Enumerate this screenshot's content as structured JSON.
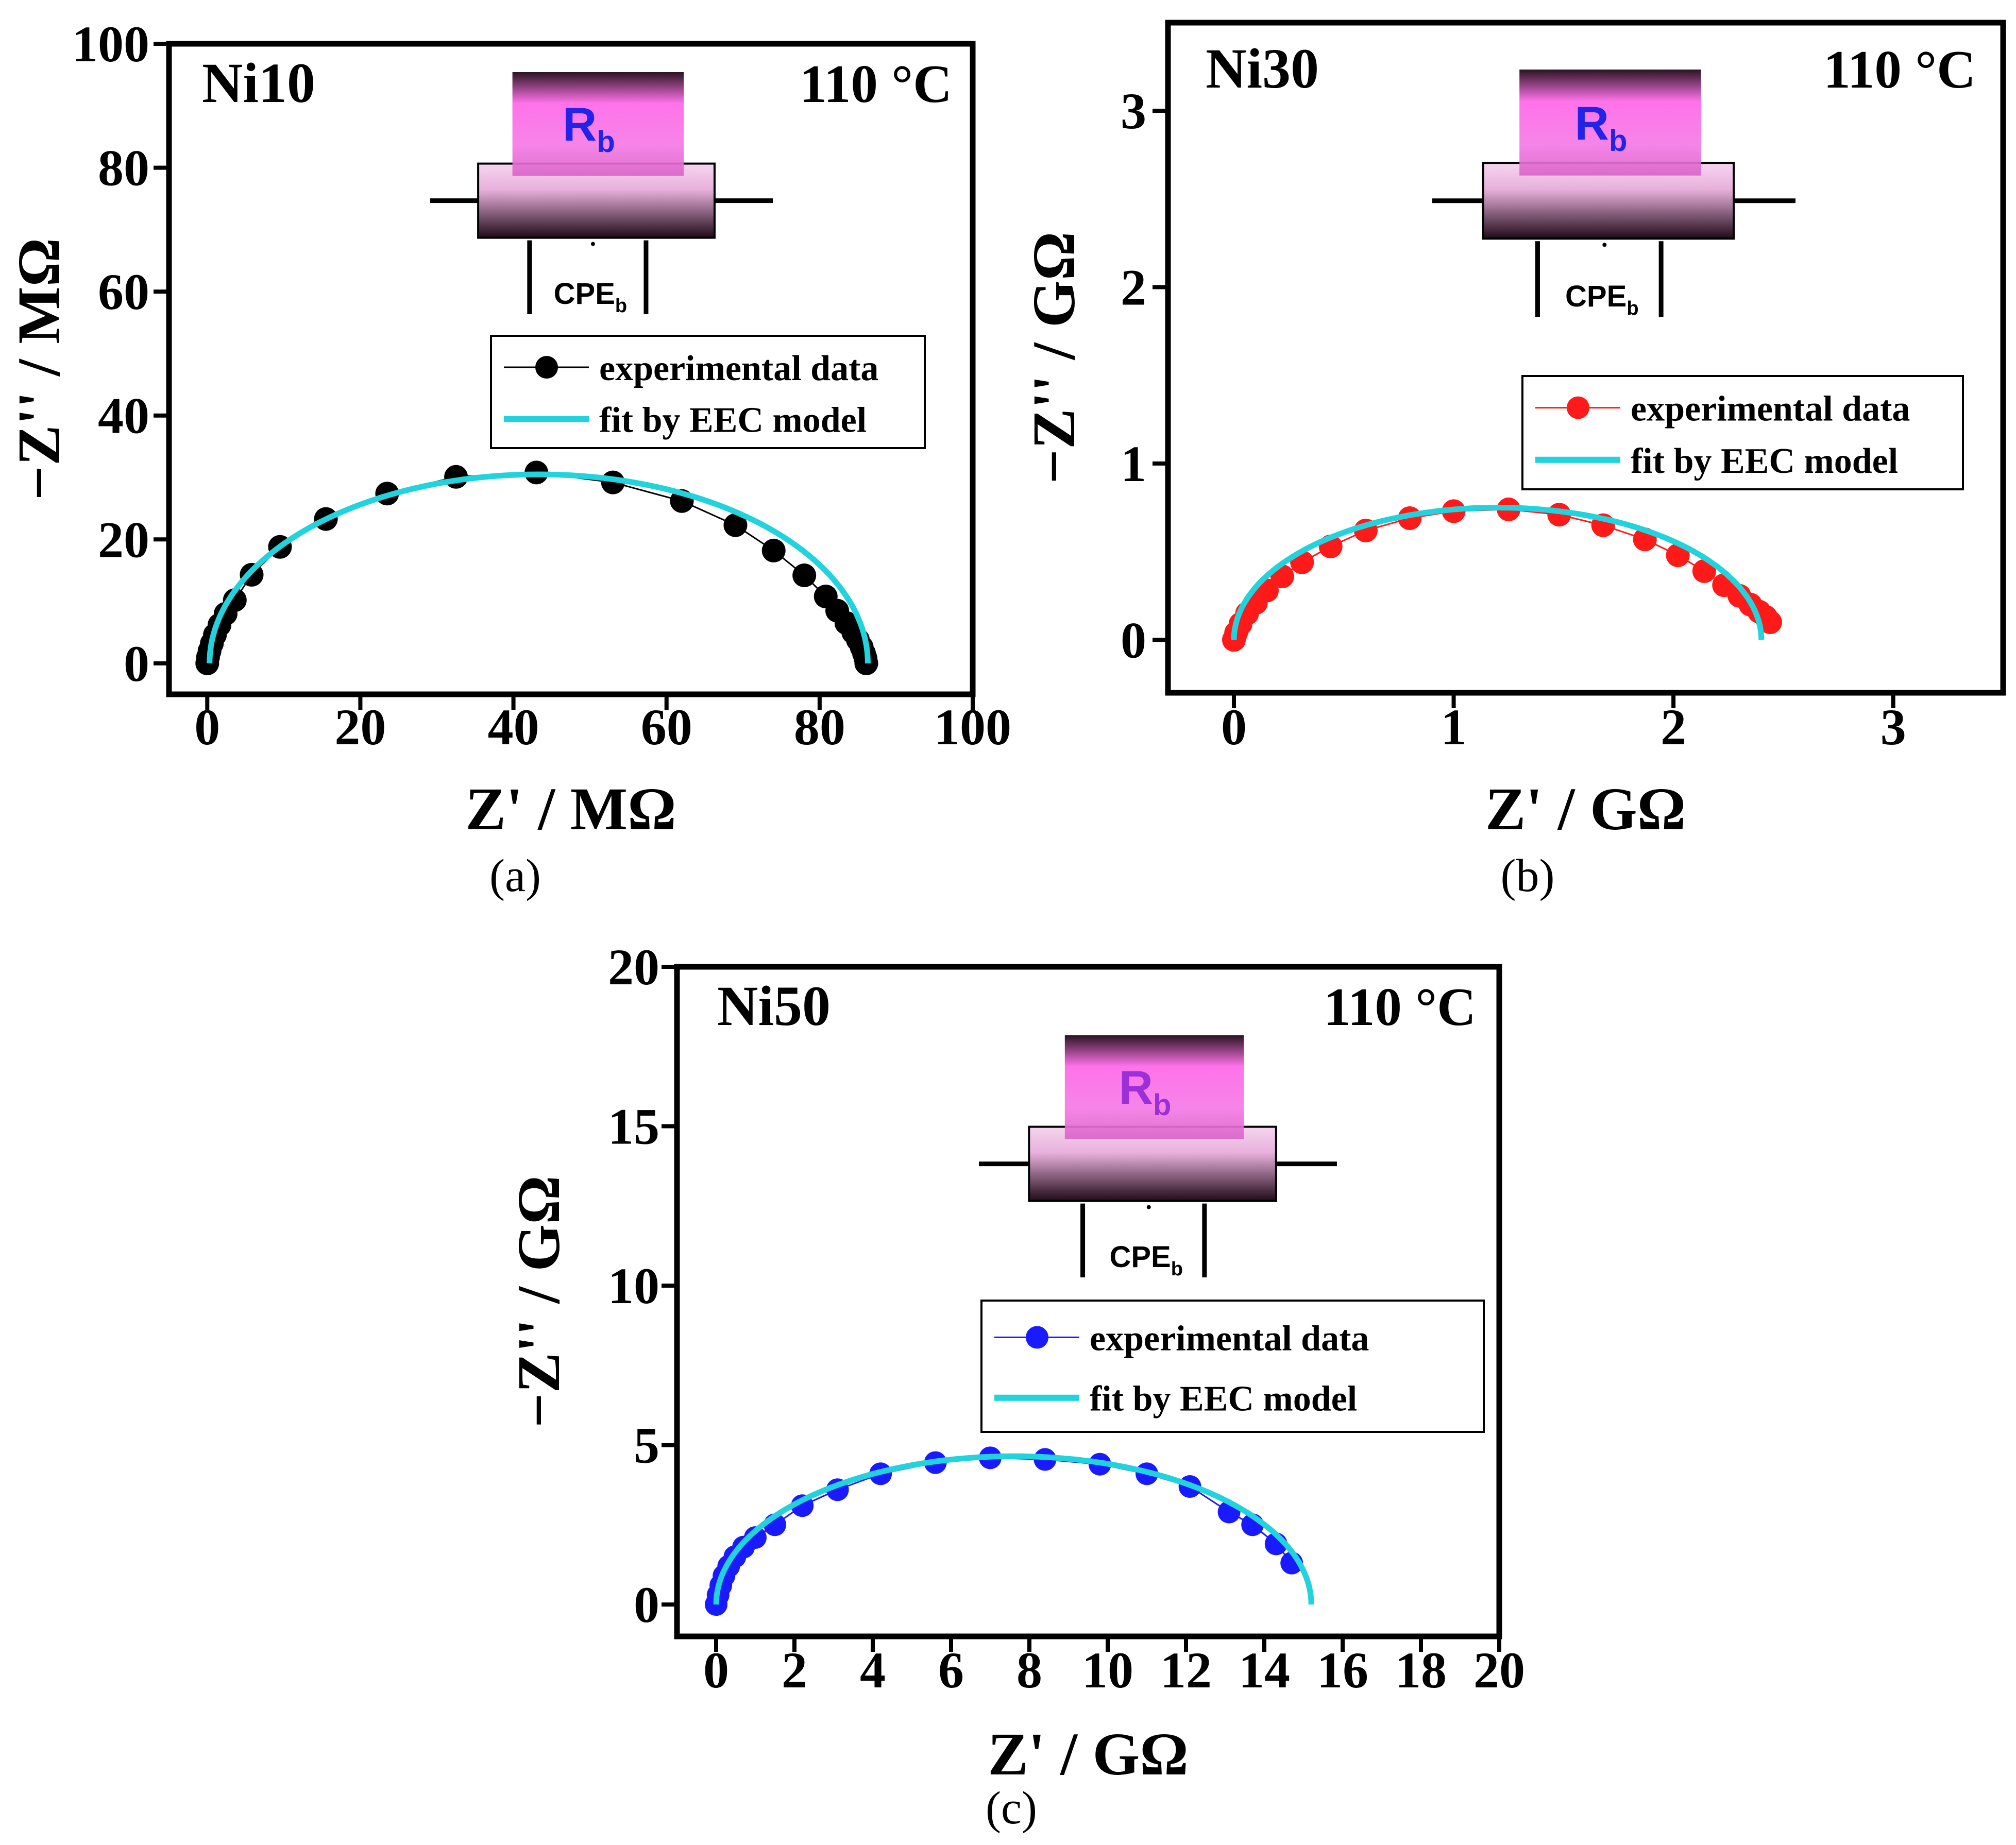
{
  "chart_data": [
    {
      "type": "scatter",
      "panel_label": "(a)",
      "sample": "Ni10",
      "temperature": "110 °C",
      "xlabel": "Z' / MΩ",
      "ylabel": "−Z'' / MΩ",
      "xlim": [
        -5,
        100
      ],
      "ylim": [
        -5,
        100
      ],
      "xticks": [
        0,
        20,
        40,
        60,
        80,
        100
      ],
      "yticks": [
        0,
        20,
        40,
        60,
        80,
        100
      ],
      "marker_color": "#000000",
      "fit_color": "#22d3dd",
      "circuit": {
        "resistor": "R",
        "resistor_sub": "b",
        "cpe": "CPE",
        "cpe_sub": "b"
      },
      "legend": [
        "experimental data",
        "fit by EEC model"
      ],
      "series": [
        {
          "name": "experimental data",
          "x": [
            0.0,
            0.1,
            0.3,
            0.6,
            1.0,
            1.6,
            2.4,
            3.6,
            5.8,
            9.5,
            15.5,
            23.5,
            32.5,
            43.0,
            53.0,
            62.0,
            69.0,
            74.0,
            78.0,
            80.8,
            82.3,
            83.5,
            84.4,
            85.0,
            85.5,
            85.8,
            86.0,
            86.1
          ],
          "y": [
            0.0,
            1.0,
            2.0,
            3.2,
            4.6,
            6.2,
            8.0,
            10.2,
            14.3,
            18.8,
            23.3,
            27.4,
            30.1,
            30.8,
            29.2,
            26.2,
            22.3,
            18.2,
            14.2,
            10.8,
            8.5,
            6.5,
            5.0,
            3.8,
            2.6,
            1.6,
            0.8,
            0.0
          ]
        },
        {
          "name": "fit by EEC model",
          "center": 43.3,
          "radius": 43.0,
          "depression": 30.5
        }
      ]
    },
    {
      "type": "scatter",
      "panel_label": "(b)",
      "sample": "Ni30",
      "temperature": "110 °C",
      "xlabel": "Z' / GΩ",
      "ylabel": "−Z'' / GΩ",
      "xlim": [
        -0.3,
        3.5
      ],
      "ylim": [
        -0.3,
        3.5
      ],
      "xticks": [
        0,
        1,
        2,
        3
      ],
      "yticks": [
        0,
        1,
        2,
        3
      ],
      "marker_color": "#ff1a1a",
      "fit_color": "#22d3dd",
      "circuit": {
        "resistor": "R",
        "resistor_sub": "b",
        "cpe": "CPE",
        "cpe_sub": "b"
      },
      "legend": [
        "experimental data",
        "fit by EEC model"
      ],
      "series": [
        {
          "name": "experimental data",
          "x": [
            0.0,
            0.01,
            0.03,
            0.06,
            0.1,
            0.15,
            0.22,
            0.31,
            0.44,
            0.6,
            0.8,
            1.0,
            1.25,
            1.48,
            1.68,
            1.87,
            2.02,
            2.14,
            2.23,
            2.3,
            2.35,
            2.39,
            2.42,
            2.44
          ],
          "y": [
            0.0,
            0.04,
            0.09,
            0.15,
            0.21,
            0.28,
            0.36,
            0.44,
            0.53,
            0.62,
            0.69,
            0.73,
            0.74,
            0.71,
            0.65,
            0.57,
            0.48,
            0.39,
            0.31,
            0.25,
            0.2,
            0.16,
            0.13,
            0.1
          ]
        },
        {
          "name": "fit by EEC model",
          "center": 1.2,
          "radius": 1.2,
          "depression": 0.75
        }
      ]
    },
    {
      "type": "scatter",
      "panel_label": "(c)",
      "sample": "Ni50",
      "temperature": "110 °C",
      "xlabel": "Z' / GΩ",
      "ylabel": "−Z'' / GΩ",
      "xlim": [
        -1,
        20
      ],
      "ylim": [
        -1,
        20
      ],
      "xticks": [
        0,
        2,
        4,
        6,
        8,
        10,
        12,
        14,
        16,
        18,
        20
      ],
      "yticks": [
        0,
        5,
        10,
        15,
        20
      ],
      "marker_color": "#1a1aff",
      "fit_color": "#22d3dd",
      "circuit": {
        "resistor": "R",
        "resistor_sub": "b",
        "cpe": "CPE",
        "cpe_sub": "b"
      },
      "legend": [
        "experimental data",
        "fit by EEC model"
      ],
      "series": [
        {
          "name": "experimental data",
          "x": [
            0.0,
            0.05,
            0.12,
            0.2,
            0.32,
            0.48,
            0.7,
            1.0,
            1.5,
            2.2,
            3.1,
            4.2,
            5.6,
            7.0,
            8.4,
            9.8,
            11.0,
            12.1,
            13.1,
            13.7,
            14.3,
            14.7
          ],
          "y": [
            0.0,
            0.3,
            0.6,
            0.9,
            1.2,
            1.5,
            1.8,
            2.1,
            2.5,
            3.1,
            3.6,
            4.1,
            4.45,
            4.6,
            4.55,
            4.4,
            4.1,
            3.7,
            2.9,
            2.5,
            1.9,
            1.3
          ]
        },
        {
          "name": "fit by EEC model",
          "center": 7.6,
          "radius": 7.6,
          "depression": 4.65
        }
      ]
    }
  ]
}
